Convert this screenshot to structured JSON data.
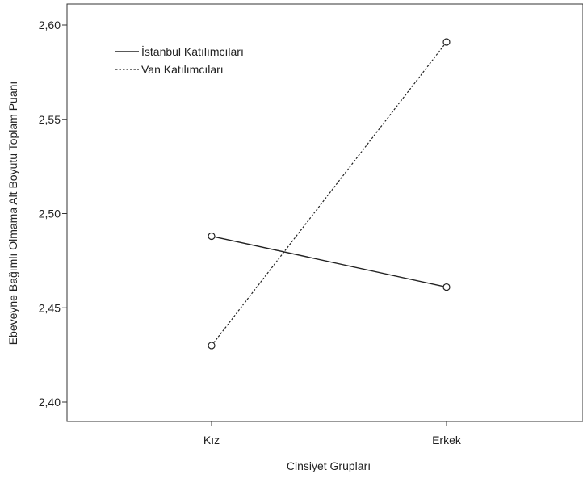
{
  "chart_data": {
    "type": "line",
    "title": "",
    "xlabel": "Cinsiyet Grupları",
    "ylabel": "Ebeveyne Bağımlı Olmama Alt Boyutu Toplam Puanı",
    "categories": [
      "Kız",
      "Erkek"
    ],
    "yticks": [
      "2,40",
      "2,45",
      "2,50",
      "2,55",
      "2,60"
    ],
    "ylim": [
      2.395,
      2.612
    ],
    "grid": false,
    "legend_position": "top-left",
    "series": [
      {
        "name": "İstanbul Katılımcıları",
        "values": [
          2.488,
          2.461
        ],
        "line_style": "solid",
        "color": "#222222"
      },
      {
        "name": "Van Katılımcıları",
        "values": [
          2.43,
          2.591
        ],
        "line_style": "dashed",
        "color": "#222222"
      }
    ]
  }
}
